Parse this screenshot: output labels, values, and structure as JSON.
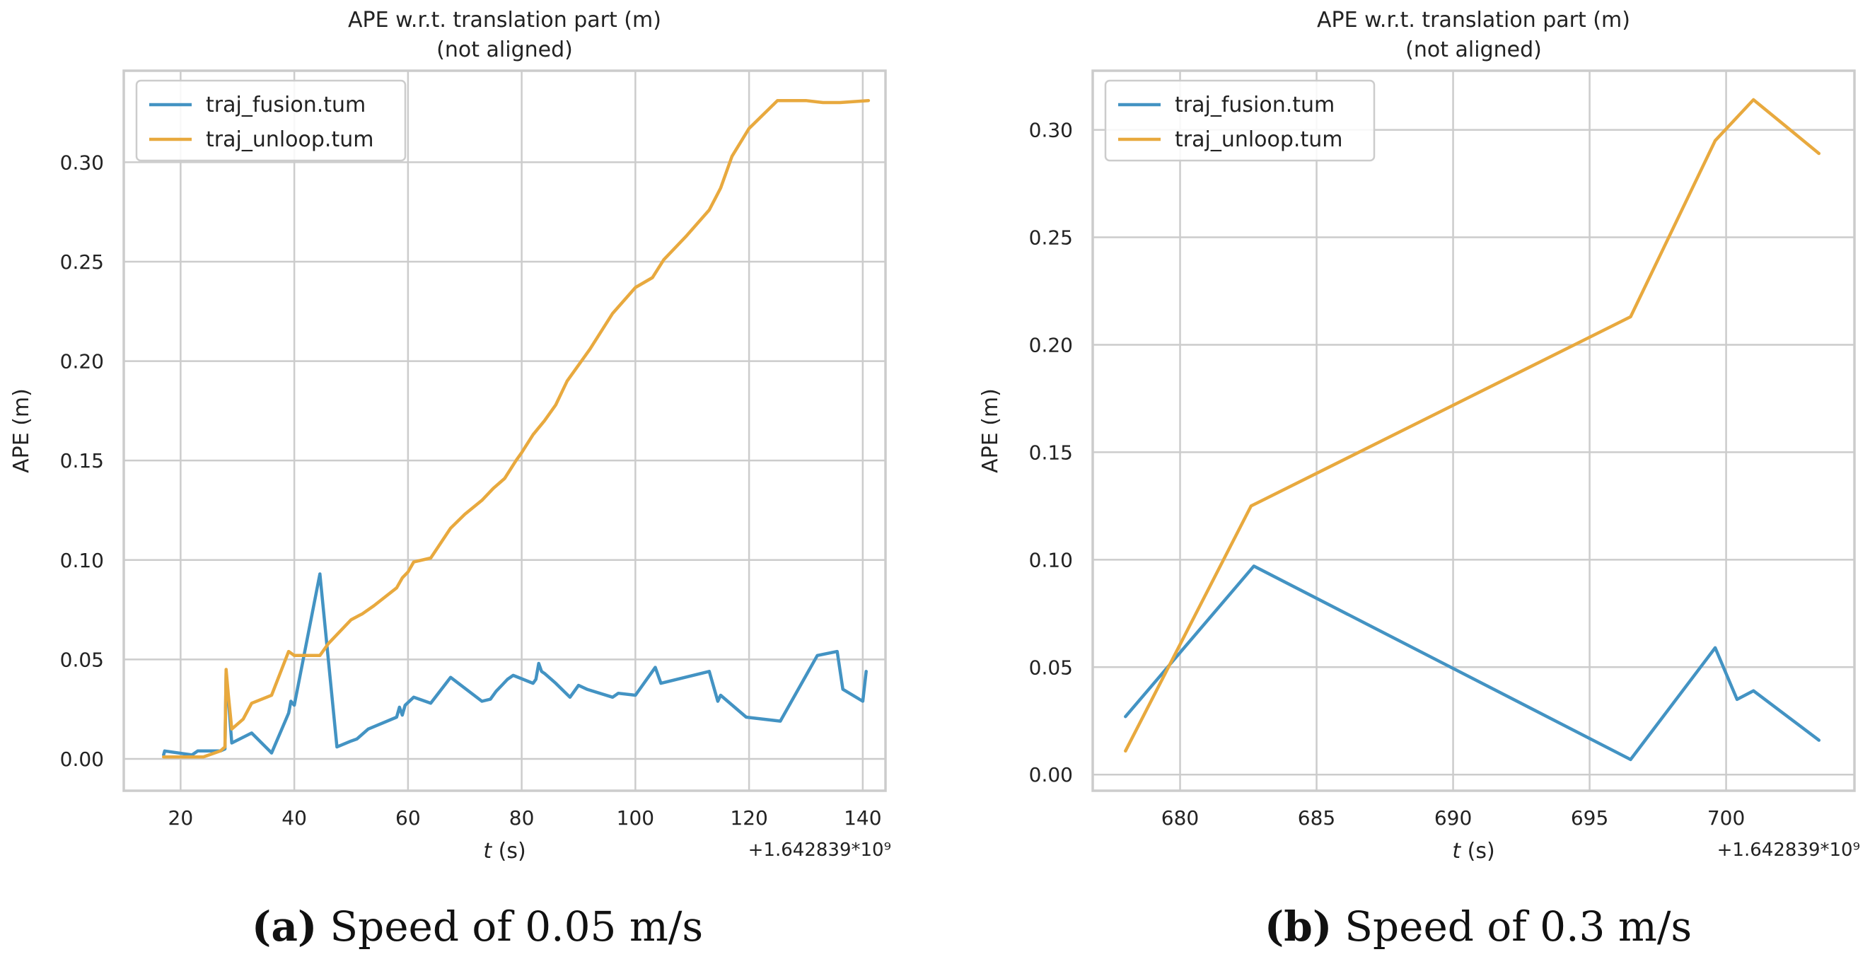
{
  "chart_data": [
    {
      "type": "line",
      "title_line1": "APE w.r.t. translation part (m)",
      "title_line2": "(not aligned)",
      "xlabel_var": "t",
      "xlabel_unit": " (s)",
      "ylabel": "APE (m)",
      "offset_text": "+1.642839*10⁹",
      "caption_label": "(a)",
      "caption_text": "Speed of 0.05 m/s",
      "xlim": [
        10,
        144
      ],
      "ylim": [
        -0.016,
        0.346
      ],
      "xticks": [
        20,
        40,
        60,
        80,
        100,
        120,
        140
      ],
      "xtick_labels": [
        "20",
        "40",
        "60",
        "80",
        "100",
        "120",
        "140"
      ],
      "yticks": [
        0.0,
        0.05,
        0.1,
        0.15,
        0.2,
        0.25,
        0.3
      ],
      "ytick_labels": [
        "0.00",
        "0.05",
        "0.10",
        "0.15",
        "0.20",
        "0.25",
        "0.30"
      ],
      "legend_position": "top-left",
      "series": [
        {
          "name": "traj_fusion.tum",
          "color": "#4393c3",
          "x": [
            17,
            17.2,
            22,
            22.5,
            23,
            27,
            27.8,
            28,
            28.4,
            29,
            32.5,
            36,
            39,
            39.4,
            40,
            44.5,
            47.5,
            50,
            51,
            53,
            58,
            58.5,
            59,
            59.5,
            61,
            64,
            67.5,
            73,
            74.5,
            75.5,
            76.5,
            77.5,
            78.5,
            82,
            82.5,
            83,
            83.5,
            84,
            86,
            88.5,
            90,
            91.5,
            96,
            97,
            100,
            103.5,
            104.5,
            113,
            114.5,
            115,
            119.5,
            125.5,
            132,
            135.5,
            136.5,
            140,
            140.6
          ],
          "y": [
            0.002,
            0.004,
            0.002,
            0.003,
            0.004,
            0.004,
            0.005,
            0.043,
            0.03,
            0.008,
            0.013,
            0.003,
            0.023,
            0.029,
            0.027,
            0.093,
            0.006,
            0.009,
            0.01,
            0.015,
            0.021,
            0.026,
            0.022,
            0.027,
            0.031,
            0.028,
            0.041,
            0.029,
            0.03,
            0.034,
            0.037,
            0.04,
            0.042,
            0.038,
            0.04,
            0.048,
            0.044,
            0.043,
            0.038,
            0.031,
            0.037,
            0.035,
            0.031,
            0.033,
            0.032,
            0.046,
            0.038,
            0.044,
            0.029,
            0.032,
            0.021,
            0.019,
            0.052,
            0.054,
            0.035,
            0.029,
            0.044
          ]
        },
        {
          "name": "traj_unloop.tum",
          "color": "#e8a93e",
          "x": [
            17,
            24,
            27,
            27.8,
            28,
            28.4,
            29,
            31,
            32.5,
            36,
            39,
            40,
            44.5,
            46,
            50,
            52,
            54,
            58,
            59,
            60,
            61,
            64,
            67.5,
            70,
            73,
            75,
            77,
            79,
            80,
            82,
            84,
            86,
            88,
            90,
            92,
            96,
            100,
            103,
            105,
            109,
            113,
            115,
            117,
            120,
            125,
            130,
            133,
            136,
            141
          ],
          "y": [
            0.001,
            0.001,
            0.004,
            0.006,
            0.045,
            0.032,
            0.015,
            0.02,
            0.028,
            0.032,
            0.054,
            0.052,
            0.052,
            0.058,
            0.07,
            0.073,
            0.077,
            0.086,
            0.091,
            0.094,
            0.099,
            0.101,
            0.116,
            0.123,
            0.13,
            0.136,
            0.141,
            0.15,
            0.154,
            0.163,
            0.17,
            0.178,
            0.19,
            0.198,
            0.206,
            0.224,
            0.237,
            0.242,
            0.251,
            0.263,
            0.276,
            0.287,
            0.303,
            0.317,
            0.331,
            0.331,
            0.33,
            0.33,
            0.331
          ]
        }
      ]
    },
    {
      "type": "line",
      "title_line1": "APE w.r.t. translation part (m)",
      "title_line2": "(not aligned)",
      "xlabel_var": "t",
      "xlabel_unit": " (s)",
      "ylabel": "APE (m)",
      "offset_text": "+1.642839*10⁹",
      "caption_label": "(b)",
      "caption_text": "Speed of 0.3 m/s",
      "xlim": [
        676.8,
        704.7
      ],
      "ylim": [
        -0.0075,
        0.3275
      ],
      "xticks": [
        680,
        685,
        690,
        695,
        700
      ],
      "xtick_labels": [
        "680",
        "685",
        "690",
        "695",
        "700"
      ],
      "yticks": [
        0.0,
        0.05,
        0.1,
        0.15,
        0.2,
        0.25,
        0.3
      ],
      "ytick_labels": [
        "0.00",
        "0.05",
        "0.10",
        "0.15",
        "0.20",
        "0.25",
        "0.30"
      ],
      "legend_position": "top-left",
      "series": [
        {
          "name": "traj_fusion.tum",
          "color": "#4393c3",
          "x": [
            678,
            682.7,
            696.5,
            699.6,
            700.4,
            701,
            703.4
          ],
          "y": [
            0.027,
            0.097,
            0.007,
            0.059,
            0.035,
            0.039,
            0.016
          ]
        },
        {
          "name": "traj_unloop.tum",
          "color": "#e8a93e",
          "x": [
            678,
            682.6,
            696.5,
            699.6,
            701,
            703.4
          ],
          "y": [
            0.011,
            0.125,
            0.213,
            0.295,
            0.314,
            0.289
          ]
        }
      ]
    }
  ]
}
